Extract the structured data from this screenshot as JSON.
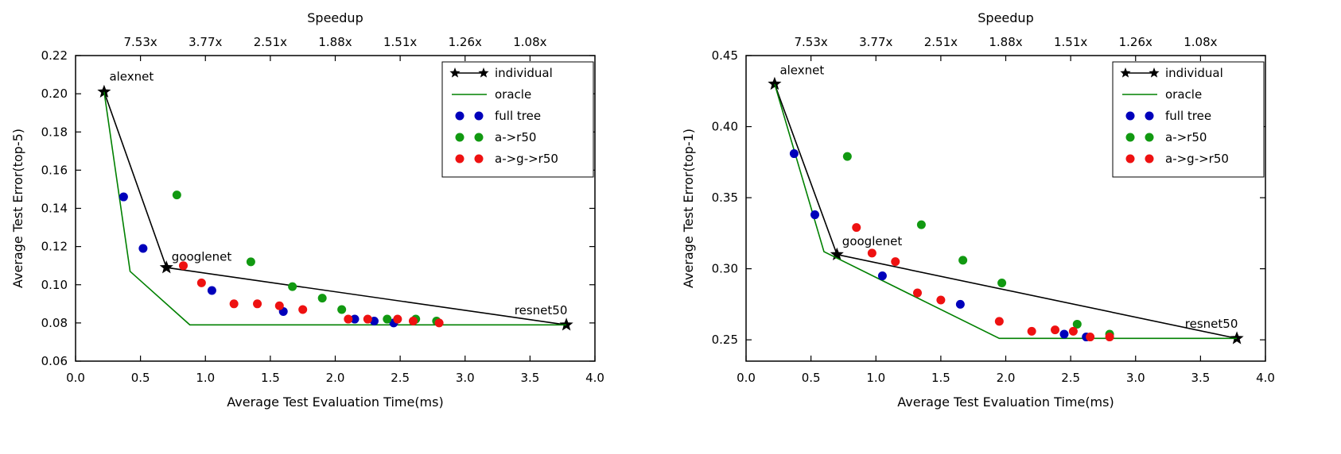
{
  "figure": {
    "description": "Two scatter/line plots of test error vs evaluation time with speedup top axis"
  },
  "chart_data": [
    {
      "type": "scatter",
      "xlabel": "Average Test Evaluation Time(ms)",
      "ylabel": "Average Test Error(top-5)",
      "top_label": "Speedup",
      "xlim": [
        0.0,
        4.0
      ],
      "ylim": [
        0.06,
        0.22
      ],
      "xticks": {
        "values": [
          0.0,
          0.5,
          1.0,
          1.5,
          2.0,
          2.5,
          3.0,
          3.5,
          4.0
        ],
        "labels": [
          "0.0",
          "0.5",
          "1.0",
          "1.5",
          "2.0",
          "2.5",
          "3.0",
          "3.5",
          "4.0"
        ]
      },
      "yticks": {
        "values": [
          0.06,
          0.08,
          0.1,
          0.12,
          0.14,
          0.16,
          0.18,
          0.2,
          0.22
        ],
        "labels": [
          "0.06",
          "0.08",
          "0.10",
          "0.12",
          "0.14",
          "0.16",
          "0.18",
          "0.20",
          "0.22"
        ]
      },
      "top_ticks": {
        "values": [
          0.5,
          1.0,
          1.5,
          2.0,
          2.5,
          3.0,
          3.5
        ],
        "labels": [
          "7.53x",
          "3.77x",
          "2.51x",
          "1.88x",
          "1.51x",
          "1.26x",
          "1.08x"
        ]
      },
      "grid": false,
      "legend_position": "upper right",
      "annotations": [
        {
          "text": "alexnet",
          "x": 0.26,
          "y": 0.207
        },
        {
          "text": "googlenet",
          "x": 0.74,
          "y": 0.1125
        },
        {
          "text": "resnet50",
          "x": 3.38,
          "y": 0.0845
        }
      ],
      "series": [
        {
          "name": "individual",
          "color": "#000000",
          "style": "line",
          "marker": "star",
          "legend_sample": "star-line",
          "points": [
            [
              0.22,
              0.201
            ],
            [
              0.7,
              0.109
            ],
            [
              3.78,
              0.079
            ]
          ]
        },
        {
          "name": "oracle",
          "color": "#008000",
          "style": "line",
          "marker": "none",
          "legend_sample": "line",
          "points": [
            [
              0.22,
              0.201
            ],
            [
              0.42,
              0.107
            ],
            [
              0.88,
              0.079
            ],
            [
              3.78,
              0.079
            ]
          ]
        },
        {
          "name": "full tree",
          "color": "#0000bb",
          "style": "scatter",
          "legend_sample": "dots",
          "points": [
            [
              0.37,
              0.146
            ],
            [
              0.52,
              0.119
            ],
            [
              1.05,
              0.097
            ],
            [
              1.6,
              0.086
            ],
            [
              2.15,
              0.082
            ],
            [
              2.3,
              0.081
            ],
            [
              2.45,
              0.08
            ]
          ]
        },
        {
          "name": "a->r50",
          "color": "#119911",
          "style": "scatter",
          "legend_sample": "dots",
          "points": [
            [
              0.78,
              0.147
            ],
            [
              1.35,
              0.112
            ],
            [
              1.67,
              0.099
            ],
            [
              1.9,
              0.093
            ],
            [
              2.05,
              0.087
            ],
            [
              2.4,
              0.082
            ],
            [
              2.62,
              0.082
            ],
            [
              2.78,
              0.081
            ]
          ]
        },
        {
          "name": "a->g->r50",
          "color": "#ee1111",
          "style": "scatter",
          "legend_sample": "dots",
          "points": [
            [
              0.83,
              0.11
            ],
            [
              0.97,
              0.101
            ],
            [
              1.22,
              0.09
            ],
            [
              1.4,
              0.09
            ],
            [
              1.57,
              0.089
            ],
            [
              1.75,
              0.087
            ],
            [
              2.1,
              0.082
            ],
            [
              2.25,
              0.082
            ],
            [
              2.48,
              0.082
            ],
            [
              2.6,
              0.081
            ],
            [
              2.8,
              0.08
            ]
          ]
        }
      ]
    },
    {
      "type": "scatter",
      "xlabel": "Average Test Evaluation Time(ms)",
      "ylabel": "Average Test Error(top-1)",
      "top_label": "Speedup",
      "xlim": [
        0.0,
        4.0
      ],
      "ylim": [
        0.235,
        0.45
      ],
      "xticks": {
        "values": [
          0.0,
          0.5,
          1.0,
          1.5,
          2.0,
          2.5,
          3.0,
          3.5,
          4.0
        ],
        "labels": [
          "0.0",
          "0.5",
          "1.0",
          "1.5",
          "2.0",
          "2.5",
          "3.0",
          "3.5",
          "4.0"
        ]
      },
      "yticks": {
        "values": [
          0.25,
          0.3,
          0.35,
          0.4,
          0.45
        ],
        "labels": [
          "0.25",
          "0.30",
          "0.35",
          "0.40",
          "0.45"
        ]
      },
      "top_ticks": {
        "values": [
          0.5,
          1.0,
          1.5,
          2.0,
          2.5,
          3.0,
          3.5
        ],
        "labels": [
          "7.53x",
          "3.77x",
          "2.51x",
          "1.88x",
          "1.51x",
          "1.26x",
          "1.08x"
        ]
      },
      "grid": false,
      "legend_position": "upper right",
      "annotations": [
        {
          "text": "alexnet",
          "x": 0.26,
          "y": 0.437
        },
        {
          "text": "googlenet",
          "x": 0.74,
          "y": 0.3165
        },
        {
          "text": "resnet50",
          "x": 3.38,
          "y": 0.2585
        }
      ],
      "series": [
        {
          "name": "individual",
          "color": "#000000",
          "style": "line",
          "marker": "star",
          "legend_sample": "star-line",
          "points": [
            [
              0.22,
              0.43
            ],
            [
              0.7,
              0.31
            ],
            [
              3.78,
              0.251
            ]
          ]
        },
        {
          "name": "oracle",
          "color": "#008000",
          "style": "line",
          "marker": "none",
          "legend_sample": "line",
          "points": [
            [
              0.22,
              0.43
            ],
            [
              0.6,
              0.312
            ],
            [
              1.95,
              0.251
            ],
            [
              3.78,
              0.251
            ]
          ]
        },
        {
          "name": "full tree",
          "color": "#0000bb",
          "style": "scatter",
          "legend_sample": "dots",
          "points": [
            [
              0.37,
              0.381
            ],
            [
              0.53,
              0.338
            ],
            [
              1.05,
              0.295
            ],
            [
              1.65,
              0.275
            ],
            [
              2.45,
              0.254
            ],
            [
              2.62,
              0.252
            ]
          ]
        },
        {
          "name": "a->r50",
          "color": "#119911",
          "style": "scatter",
          "legend_sample": "dots",
          "points": [
            [
              0.78,
              0.379
            ],
            [
              1.35,
              0.331
            ],
            [
              1.67,
              0.306
            ],
            [
              1.97,
              0.29
            ],
            [
              2.55,
              0.261
            ],
            [
              2.8,
              0.254
            ]
          ]
        },
        {
          "name": "a->g->r50",
          "color": "#ee1111",
          "style": "scatter",
          "legend_sample": "dots",
          "points": [
            [
              0.85,
              0.329
            ],
            [
              0.97,
              0.311
            ],
            [
              1.15,
              0.305
            ],
            [
              1.32,
              0.283
            ],
            [
              1.5,
              0.278
            ],
            [
              1.95,
              0.263
            ],
            [
              2.2,
              0.256
            ],
            [
              2.38,
              0.257
            ],
            [
              2.52,
              0.256
            ],
            [
              2.65,
              0.252
            ],
            [
              2.8,
              0.252
            ]
          ]
        }
      ]
    }
  ]
}
